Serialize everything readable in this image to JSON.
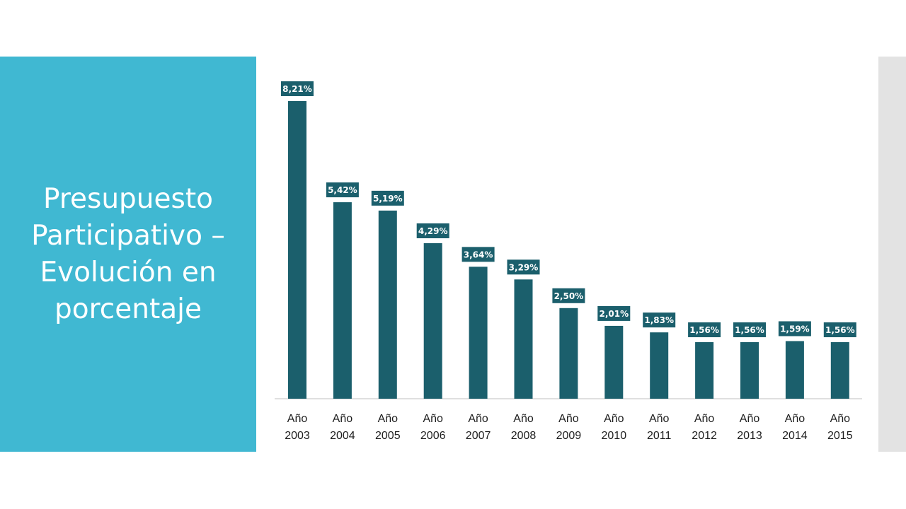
{
  "slide": {
    "title": "Presupuesto Participativo – Evolución en porcentaje"
  },
  "colors": {
    "left_band": "#40b8d2",
    "right_band": "#e3e3e3",
    "bar": "#1b5f6c",
    "label_bg": "#1b5f6c"
  },
  "chart_data": {
    "type": "bar",
    "categories": [
      "Año 2003",
      "Año 2004",
      "Año 2005",
      "Año 2006",
      "Año 2007",
      "Año 2008",
      "Año 2009",
      "Año 2010",
      "Año 2011",
      "Año 2012",
      "Año 2013",
      "Año 2014",
      "Año 2015"
    ],
    "values": [
      8.21,
      5.42,
      5.19,
      4.29,
      3.64,
      3.29,
      2.5,
      2.01,
      1.83,
      1.56,
      1.56,
      1.59,
      1.56
    ],
    "data_labels": [
      "8,21%",
      "5,42%",
      "5,19%",
      "4,29%",
      "3,64%",
      "3,29%",
      "2,50%",
      "2,01%",
      "1,83%",
      "1,56%",
      "1,56%",
      "1,59%",
      "1,56%"
    ],
    "ylim": [
      0,
      8.21
    ],
    "grid": false,
    "legend": "none"
  }
}
